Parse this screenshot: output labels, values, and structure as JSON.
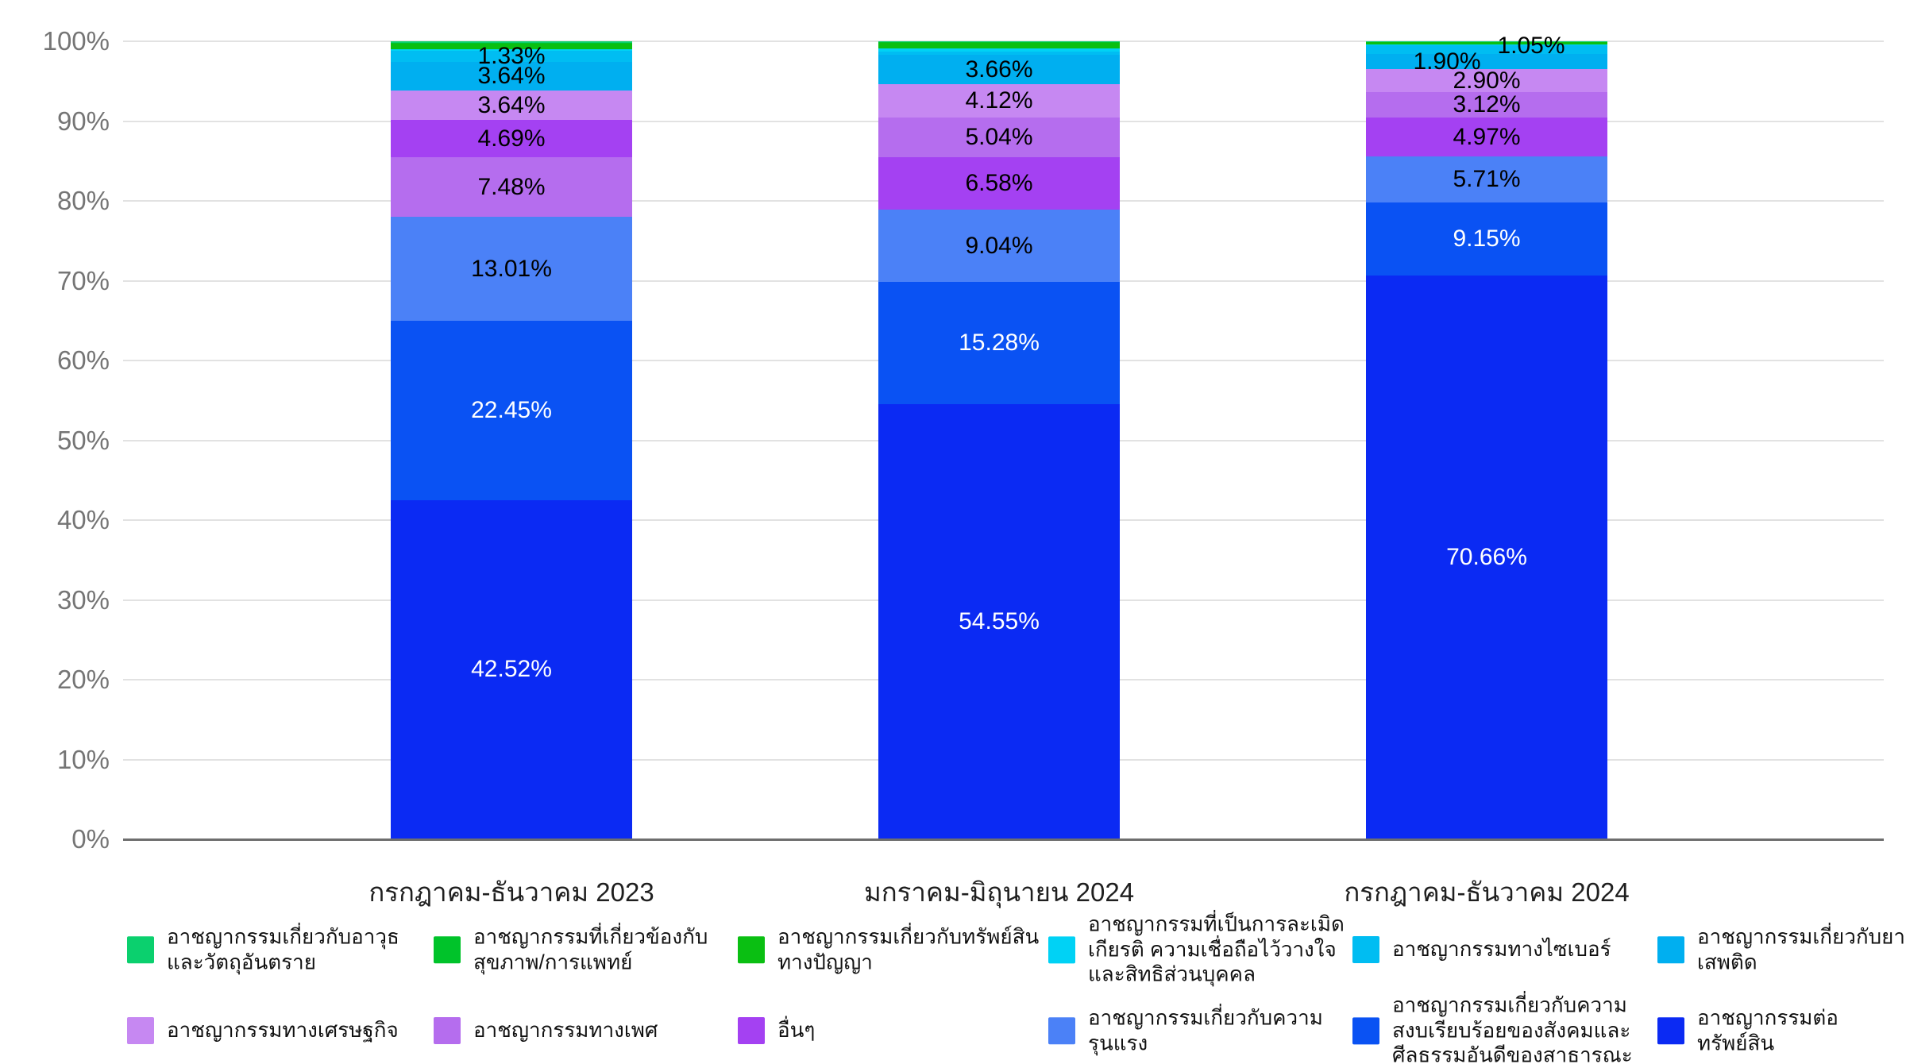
{
  "chart_data": {
    "type": "bar",
    "stacked": true,
    "unit": "%",
    "title": "",
    "xlabel": "",
    "ylabel": "",
    "ylim": [
      0,
      100
    ],
    "grid": "horizontal",
    "legend_position": "bottom",
    "yticks": [
      "0%",
      "10%",
      "20%",
      "30%",
      "40%",
      "50%",
      "60%",
      "70%",
      "80%",
      "90%",
      "100%"
    ],
    "categories": [
      "กรกฎาคม-ธันวาคม 2023",
      "มกราคม-มิถุนายน 2024",
      "กรกฎาคม-ธันวาคม 2024"
    ],
    "series": [
      {
        "name": "อาชญากรรมเกี่ยวกับอาวุธและวัตถุอันตราย",
        "color": "#0bd06e"
      },
      {
        "name": "อาชญากรรมที่เกี่ยวข้องกับสุขภาพ/การแพทย์",
        "color": "#00c32a"
      },
      {
        "name": "อาชญากรรมเกี่ยวกับทรัพย์สินทางปัญญา",
        "color": "#0abf12"
      },
      {
        "name": "อาชญากรรมที่เป็นการละเมิดเกียรติ ความเชื่อถือไว้วางใจ และสิทธิส่วนบุคคล",
        "color": "#00d2f5"
      },
      {
        "name": "อาชญากรรมทางไซเบอร์",
        "color": "#00bdf2"
      },
      {
        "name": "อาชญากรรมเกี่ยวกับยาเสพติด",
        "color": "#00aff0"
      },
      {
        "name": "อาชญากรรมทางเศรษฐกิจ",
        "color": "#c688f2"
      },
      {
        "name": "อาชญากรรมทางเพศ",
        "color": "#b56dee"
      },
      {
        "name": "อื่นๆ",
        "color": "#a441f2"
      },
      {
        "name": "อาชญากรรมเกี่ยวกับความรุนแรง",
        "color": "#4b81f7"
      },
      {
        "name": "อาชญากรรมเกี่ยวกับความสงบเรียบร้อยของสังคมและศีลธรรมอันดีของสาธารณะ",
        "color": "#0a52f3"
      },
      {
        "name": "อาชญากรรมต่อทรัพย์สิน",
        "color": "#0b2af3"
      }
    ],
    "bars": [
      {
        "category": "กรกฎาคม-ธันวาคม 2023",
        "segments_top_to_bottom": [
          {
            "series_index": 0,
            "value": 0.22,
            "label": null,
            "estimated": true
          },
          {
            "series_index": 1,
            "value": 0.06,
            "label": null,
            "estimated": true
          },
          {
            "series_index": 2,
            "value": 0.7,
            "label": null,
            "estimated": true
          },
          {
            "series_index": 3,
            "value": 0.26,
            "label": null,
            "estimated": true
          },
          {
            "series_index": 4,
            "value": 1.33,
            "label": "1.33%"
          },
          {
            "series_index": 5,
            "value": 3.64,
            "label": "3.64%"
          },
          {
            "series_index": 6,
            "value": 3.64,
            "label": "3.64%"
          },
          {
            "series_index": 8,
            "value": 4.69,
            "label": "4.69%"
          },
          {
            "series_index": 7,
            "value": 7.48,
            "label": "7.48%"
          },
          {
            "series_index": 9,
            "value": 13.01,
            "label": "13.01%"
          },
          {
            "series_index": 10,
            "value": 22.45,
            "label": "22.45%",
            "label_color": "#ffffff"
          },
          {
            "series_index": 11,
            "value": 42.52,
            "label": "42.52%",
            "label_color": "#ffffff"
          }
        ]
      },
      {
        "category": "มกราคม-มิถุนายน 2024",
        "segments_top_to_bottom": [
          {
            "series_index": 0,
            "value": 0.08,
            "label": null,
            "estimated": true
          },
          {
            "series_index": 1,
            "value": 0.1,
            "label": null,
            "estimated": true
          },
          {
            "series_index": 2,
            "value": 0.72,
            "label": null,
            "estimated": true
          },
          {
            "series_index": 3,
            "value": 0.38,
            "label": null,
            "estimated": true
          },
          {
            "series_index": 4,
            "value": 0.45,
            "label": null,
            "estimated": true
          },
          {
            "series_index": 5,
            "value": 3.66,
            "label": "3.66%"
          },
          {
            "series_index": 6,
            "value": 4.12,
            "label": "4.12%"
          },
          {
            "series_index": 7,
            "value": 5.04,
            "label": "5.04%"
          },
          {
            "series_index": 8,
            "value": 6.58,
            "label": "6.58%"
          },
          {
            "series_index": 9,
            "value": 9.04,
            "label": "9.04%"
          },
          {
            "series_index": 10,
            "value": 15.28,
            "label": "15.28%",
            "label_color": "#ffffff"
          },
          {
            "series_index": 11,
            "value": 54.55,
            "label": "54.55%",
            "label_color": "#ffffff"
          }
        ]
      },
      {
        "category": "กรกฎาคม-ธันวาคม 2024",
        "segments_top_to_bottom": [
          {
            "series_index": 0,
            "value": 0.05,
            "label": null,
            "estimated": true
          },
          {
            "series_index": 1,
            "value": 0.06,
            "label": null,
            "estimated": true
          },
          {
            "series_index": 2,
            "value": 0.28,
            "label": null,
            "estimated": true
          },
          {
            "series_index": 3,
            "value": 0.15,
            "label": null,
            "estimated": true
          },
          {
            "series_index": 4,
            "value": 1.05,
            "label": "1.05%",
            "label_dx": 56,
            "label_dy": -5
          },
          {
            "series_index": 5,
            "value": 1.9,
            "label": "1.90%",
            "label_dx": -50,
            "label_dy": 0
          },
          {
            "series_index": 6,
            "value": 2.9,
            "label": "2.90%"
          },
          {
            "series_index": 7,
            "value": 3.12,
            "label": "3.12%"
          },
          {
            "series_index": 8,
            "value": 4.97,
            "label": "4.97%"
          },
          {
            "series_index": 9,
            "value": 5.71,
            "label": "5.71%"
          },
          {
            "series_index": 10,
            "value": 9.15,
            "label": "9.15%",
            "label_color": "#ffffff"
          },
          {
            "series_index": 11,
            "value": 70.66,
            "label": "70.66%",
            "label_color": "#ffffff"
          }
        ]
      }
    ]
  },
  "colors": {
    "background": "#ffffff",
    "gridline": "#e2e2e2",
    "axis_line": "#6e6e6e",
    "tick_text": "#757575",
    "label_text": "#000000",
    "label_text_inverse": "#ffffff"
  }
}
